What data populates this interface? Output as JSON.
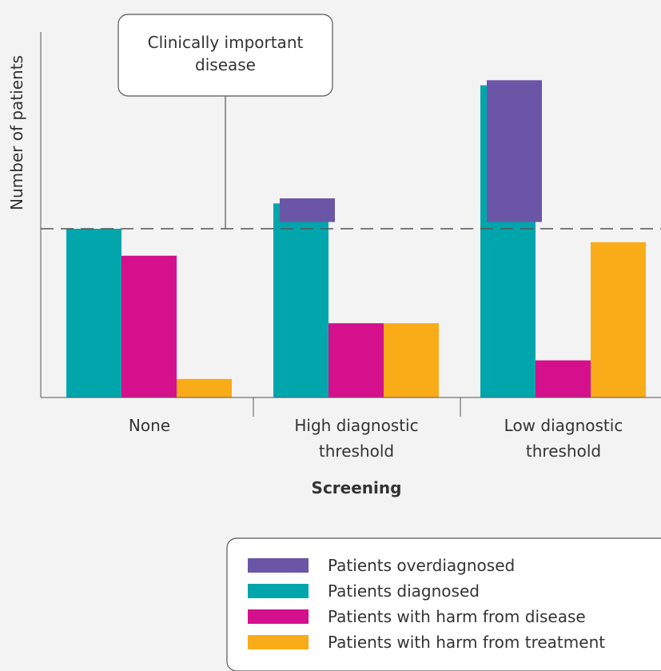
{
  "chart_data": {
    "type": "bar",
    "xlabel": "Screening",
    "ylabel": "Number of patients",
    "categories": [
      {
        "lines": [
          "None"
        ]
      },
      {
        "lines": [
          "High diagnostic",
          "threshold"
        ]
      },
      {
        "lines": [
          "Low diagnostic",
          "threshold"
        ]
      }
    ],
    "ylim": [
      0,
      100
    ],
    "y_axis_ticks": false,
    "grid": false,
    "reference_line": {
      "value": 50,
      "style": "dashed"
    },
    "annotation": {
      "lines": [
        "Clinically important",
        "disease"
      ]
    },
    "series": [
      {
        "name": "Patients diagnosed",
        "color": "#00a6ac",
        "values": [
          50,
          57.5,
          92.5
        ]
      },
      {
        "name": "Patients with harm from disease",
        "color": "#d4108c",
        "values": [
          42,
          22,
          11
        ]
      },
      {
        "name": "Patients with harm from treatment",
        "color": "#f9ab18",
        "values": [
          5.5,
          22,
          46
        ]
      }
    ],
    "overdiagnosed": {
      "name": "Patients overdiagnosed",
      "color": "#6b55a6",
      "ranges": [
        null,
        [
          52,
          59
        ],
        [
          52,
          94
        ]
      ]
    },
    "legend": {
      "position": "bottom-right",
      "order": [
        "Patients overdiagnosed",
        "Patients diagnosed",
        "Patients with harm from disease",
        "Patients with harm from treatment"
      ]
    }
  }
}
